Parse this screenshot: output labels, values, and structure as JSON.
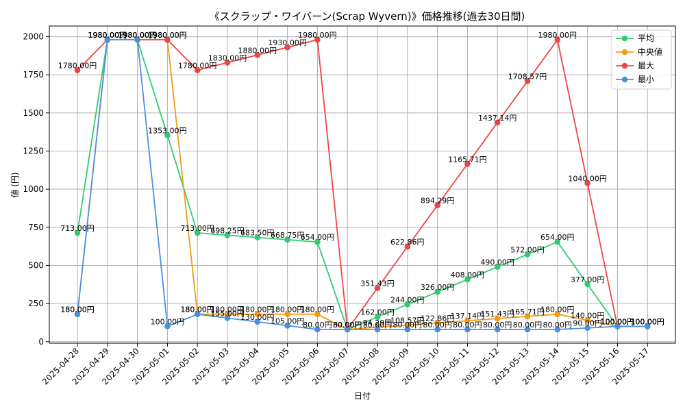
{
  "chart_data": {
    "type": "line",
    "title": "《スクラップ・ワイバーン(Scrap Wyvern)》価格推移(過去30日間)",
    "xlabel": "日付",
    "ylabel": "値 (円)",
    "ylim": [
      -10,
      2070
    ],
    "yticks": [
      0,
      250,
      500,
      750,
      1000,
      1250,
      1500,
      1750,
      2000
    ],
    "grid": true,
    "legend_position": "top-right",
    "categories": [
      "2025-04-28",
      "2025-04-29",
      "2025-04-30",
      "2025-05-01",
      "2025-05-02",
      "2025-05-03",
      "2025-05-04",
      "2025-05-05",
      "2025-05-06",
      "2025-05-07",
      "2025-05-08",
      "2025-05-09",
      "2025-05-10",
      "2025-05-11",
      "2025-05-12",
      "2025-05-13",
      "2025-05-14",
      "2025-05-15",
      "2025-05-16",
      "2025-05-17"
    ],
    "series": [
      {
        "name": "平均",
        "color": "#2ecc71",
        "values": [
          713,
          1980,
          1980,
          1353,
          713,
          698.25,
          683.5,
          668.75,
          654,
          80,
          162,
          244,
          326,
          408,
          490,
          572,
          654,
          377,
          100,
          100
        ],
        "labels": [
          "713.00円",
          "1980.00円",
          "1980.00円",
          "1353.00円",
          "713.00円",
          "698.25円",
          "683.50円",
          "668.75円",
          "654.00円",
          "80.00円",
          "162.00円",
          "244.00円",
          "326.00円",
          "408.00円",
          "490.00円",
          "572.00円",
          "654.00円",
          "377.00円",
          "100.00円",
          "100.00円"
        ]
      },
      {
        "name": "中央値",
        "color": "#f39c12",
        "values": [
          180,
          1980,
          1980,
          1980,
          180,
          180,
          180,
          180,
          180,
          80,
          94.29,
          108.57,
          122.86,
          137.14,
          151.43,
          165.71,
          180,
          140,
          100,
          100
        ],
        "labels": [
          "180.00円",
          "1980.00円",
          "1980.00円",
          "1980.00円",
          "180.00円",
          "180.00円",
          "180.00円",
          "180.00円",
          "180.00円",
          "80.00円",
          "94.29円",
          "108.57円",
          "122.86円",
          "137.14円",
          "151.43円",
          "165.71円",
          "180.00円",
          "140.00円",
          "100.00円",
          "100.00円"
        ]
      },
      {
        "name": "最大",
        "color": "#ef4444",
        "values": [
          1780,
          1980,
          1980,
          1980,
          1780,
          1830,
          1880,
          1930,
          1980,
          80,
          351.43,
          622.86,
          894.29,
          1165.71,
          1437.14,
          1708.57,
          1980,
          1040,
          100,
          100
        ],
        "labels": [
          "1780.00円",
          "1980.00円",
          "1980.00円",
          "1980.00円",
          "1780.00円",
          "1830.00円",
          "1880.00円",
          "1930.00円",
          "1980.00円",
          "80.00円",
          "351.43円",
          "622.86円",
          "894.29円",
          "1165.71円",
          "1437.14円",
          "1708.57円",
          "1980.00円",
          "1040.00円",
          "100.00円",
          "100.00円"
        ]
      },
      {
        "name": "最小",
        "color": "#4a90e2",
        "values": [
          180,
          1980,
          1980,
          100,
          180,
          155,
          130,
          105,
          80,
          80,
          80,
          80,
          80,
          80,
          80,
          80,
          80,
          90,
          100,
          100
        ],
        "labels": [
          "180.00円",
          "1980.00円",
          "1980.00円",
          "100.00円",
          "180.00円",
          "155.00円",
          "130.00円",
          "105.00円",
          "80.00円",
          "80.00円",
          "80.00円",
          "80.00円",
          "80.00円",
          "80.00円",
          "80.00円",
          "80.00円",
          "80.00円",
          "90.00円",
          "100.00円",
          "100.00円"
        ]
      }
    ]
  }
}
